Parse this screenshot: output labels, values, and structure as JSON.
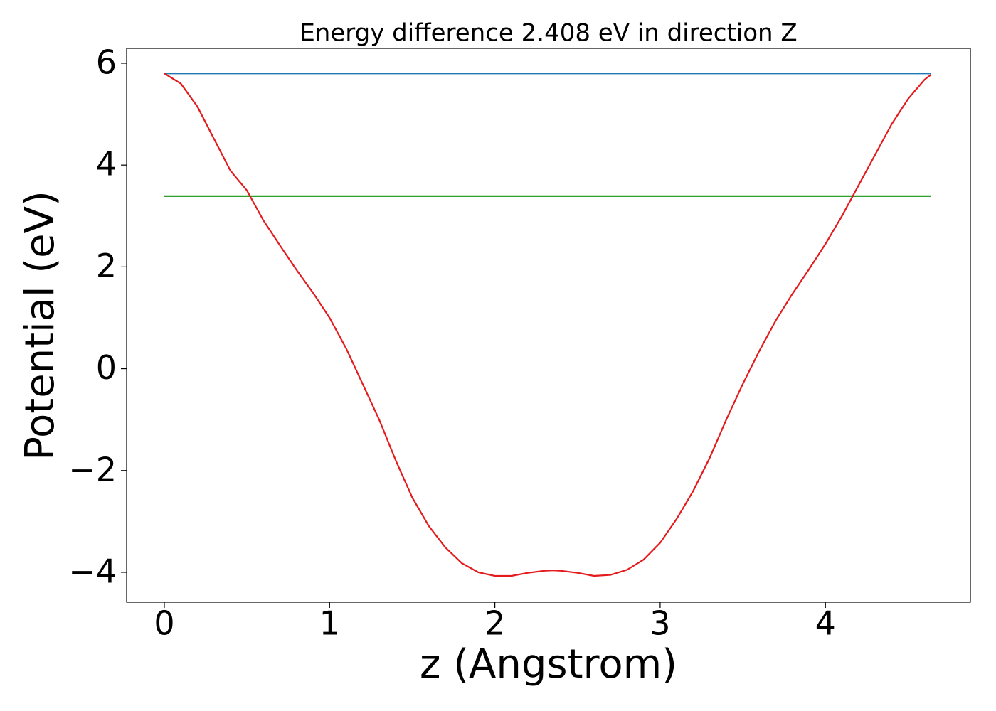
{
  "chart_data": {
    "type": "line",
    "title": "Energy difference 2.408 eV in direction Z",
    "x_label": "z (Angstrom)",
    "y_label": "Potential (eV)",
    "xlim": [
      -0.228,
      4.877
    ],
    "ylim": [
      -4.587,
      6.293
    ],
    "xticks": [
      0,
      1,
      2,
      3,
      4
    ],
    "yticks": [
      {
        "value": -4,
        "label": "−4"
      },
      {
        "value": -2,
        "label": "−2"
      },
      0,
      2,
      4,
      6
    ],
    "grid": false,
    "series": [
      {
        "color": "#1f77b4",
        "x": [
          0,
          4.64
        ],
        "values": [
          5.8,
          5.8
        ]
      },
      {
        "color": "#2ca02c",
        "x": [
          0,
          4.64
        ],
        "values": [
          3.39,
          3.39
        ]
      },
      {
        "color": "#e41a1c",
        "x": [
          0,
          0.1,
          0.2,
          0.3,
          0.4,
          0.5,
          0.6,
          0.7,
          0.8,
          0.9,
          1.0,
          1.1,
          1.2,
          1.3,
          1.4,
          1.5,
          1.6,
          1.7,
          1.8,
          1.9,
          2.0,
          2.1,
          2.2,
          2.3,
          2.35,
          2.4,
          2.5,
          2.6,
          2.7,
          2.8,
          2.9,
          3.0,
          3.1,
          3.2,
          3.3,
          3.4,
          3.5,
          3.6,
          3.7,
          3.8,
          3.9,
          4.0,
          4.1,
          4.2,
          4.3,
          4.4,
          4.5,
          4.6,
          4.64
        ],
        "values": [
          5.8,
          5.6,
          5.15,
          4.52,
          3.89,
          3.5,
          2.91,
          2.42,
          1.94,
          1.49,
          1.0,
          0.4,
          -0.3,
          -1.0,
          -1.8,
          -2.53,
          -3.09,
          -3.51,
          -3.82,
          -4.0,
          -4.07,
          -4.07,
          -4.01,
          -3.97,
          -3.96,
          -3.97,
          -4.01,
          -4.07,
          -4.05,
          -3.95,
          -3.75,
          -3.42,
          -2.95,
          -2.4,
          -1.75,
          -1.0,
          -0.3,
          0.35,
          0.95,
          1.47,
          1.95,
          2.45,
          3.0,
          3.6,
          4.2,
          4.8,
          5.3,
          5.68,
          5.78
        ]
      }
    ]
  }
}
